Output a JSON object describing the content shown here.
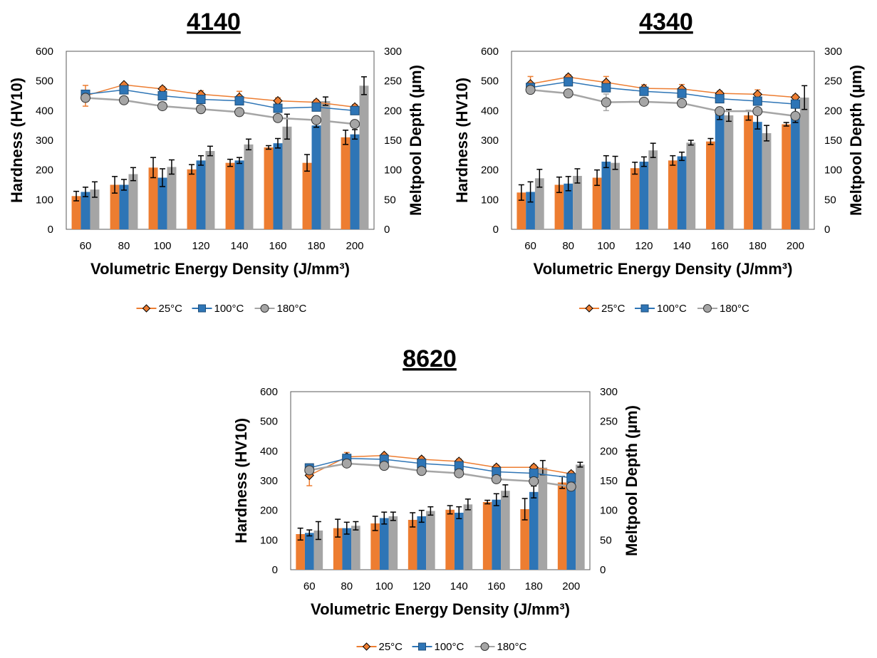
{
  "chart_data": [
    {
      "type": "bar",
      "title": "4140",
      "xlabel": "Volumetric Energy Density (J/mm³)",
      "ylabel": "Hardness (HV10)",
      "y2label": "Meltpool Depth (µm)",
      "categories": [
        "60",
        "80",
        "100",
        "120",
        "140",
        "160",
        "180",
        "200"
      ],
      "ylim": [
        0,
        600
      ],
      "y2lim": [
        0,
        300
      ],
      "yticks": [
        "0",
        "100",
        "200",
        "300",
        "400",
        "500",
        "600"
      ],
      "y2ticks": [
        "0",
        "50",
        "100",
        "150",
        "200",
        "250",
        "300"
      ],
      "legend_position": "bottom",
      "grid": false,
      "series": [
        {
          "name": "25°C",
          "color": "#ED7D31",
          "marker": "diamond",
          "hardness": [
            450,
            487,
            473,
            455,
            445,
            433,
            428,
            412
          ],
          "hardness_err": [
            35,
            6,
            8,
            12,
            20,
            10,
            8,
            8
          ],
          "meltpool": [
            56,
            75,
            104,
            101,
            112,
            138,
            112,
            155
          ],
          "meltpool_err": [
            8,
            14,
            17,
            8,
            6,
            3,
            14,
            12
          ]
        },
        {
          "name": "100°C",
          "color": "#2E75B6",
          "marker": "square",
          "hardness": [
            455,
            470,
            450,
            438,
            433,
            408,
            412,
            400
          ],
          "hardness_err": [
            8,
            6,
            6,
            8,
            8,
            6,
            5,
            5
          ],
          "meltpool": [
            63,
            75,
            87,
            116,
            116,
            145,
            175,
            160
          ],
          "meltpool_err": [
            8,
            9,
            15,
            8,
            5,
            8,
            3,
            8
          ]
        },
        {
          "name": "180°C",
          "color": "#A5A5A5",
          "marker": "circle",
          "hardness": [
            443,
            435,
            415,
            405,
            395,
            375,
            368,
            355
          ],
          "hardness_err": [
            5,
            5,
            5,
            5,
            5,
            5,
            5,
            5
          ],
          "meltpool": [
            67,
            93,
            105,
            132,
            143,
            173,
            216,
            242
          ],
          "meltpool_err": [
            13,
            11,
            12,
            8,
            9,
            21,
            7,
            15
          ]
        }
      ]
    },
    {
      "type": "bar",
      "title": "4340",
      "xlabel": "Volumetric Energy Density (J/mm³)",
      "ylabel": "Hardness (HV10)",
      "y2label": "Meltpool Depth (µm)",
      "categories": [
        "60",
        "80",
        "100",
        "120",
        "140",
        "160",
        "180",
        "200"
      ],
      "ylim": [
        0,
        600
      ],
      "y2lim": [
        0,
        300
      ],
      "yticks": [
        "0",
        "100",
        "200",
        "300",
        "400",
        "500",
        "600"
      ],
      "y2ticks": [
        "0",
        "50",
        "100",
        "150",
        "200",
        "250",
        "300"
      ],
      "legend_position": "bottom",
      "grid": false,
      "series": [
        {
          "name": "25°C",
          "color": "#ED7D31",
          "marker": "diamond",
          "hardness": [
            490,
            513,
            495,
            475,
            473,
            458,
            455,
            445
          ],
          "hardness_err": [
            25,
            8,
            20,
            12,
            15,
            8,
            15,
            8
          ],
          "meltpool": [
            62,
            75,
            87,
            103,
            116,
            148,
            192,
            177
          ],
          "meltpool_err": [
            13,
            13,
            13,
            10,
            8,
            5,
            8,
            3
          ]
        },
        {
          "name": "100°C",
          "color": "#2E75B6",
          "marker": "square",
          "hardness": [
            478,
            497,
            477,
            465,
            458,
            440,
            432,
            422
          ],
          "hardness_err": [
            8,
            6,
            8,
            6,
            6,
            6,
            6,
            6
          ],
          "meltpool": [
            63,
            77,
            114,
            114,
            123,
            195,
            181,
            195
          ],
          "meltpool_err": [
            17,
            12,
            10,
            8,
            7,
            10,
            12,
            15
          ]
        },
        {
          "name": "180°C",
          "color": "#A5A5A5",
          "marker": "circle",
          "hardness": [
            470,
            458,
            428,
            430,
            425,
            398,
            398,
            382
          ],
          "hardness_err": [
            10,
            5,
            28,
            5,
            5,
            5,
            5,
            5
          ],
          "meltpool": [
            86,
            90,
            112,
            133,
            146,
            192,
            162,
            222
          ],
          "meltpool_err": [
            15,
            12,
            11,
            12,
            4,
            10,
            13,
            20
          ]
        }
      ]
    },
    {
      "type": "bar",
      "title": "8620",
      "xlabel": "Volumetric Energy Density (J/mm³)",
      "ylabel": "Hardness (HV10)",
      "y2label": "Meltpool Depth (µm)",
      "categories": [
        "60",
        "80",
        "100",
        "120",
        "140",
        "160",
        "180",
        "200"
      ],
      "ylim": [
        0,
        600
      ],
      "y2lim": [
        0,
        300
      ],
      "yticks": [
        "0",
        "100",
        "200",
        "300",
        "400",
        "500",
        "600"
      ],
      "y2ticks": [
        "0",
        "50",
        "100",
        "150",
        "200",
        "250",
        "300"
      ],
      "legend_position": "bottom",
      "grid": false,
      "series": [
        {
          "name": "25°C",
          "color": "#ED7D31",
          "marker": "diamond",
          "hardness": [
            318,
            380,
            385,
            372,
            365,
            345,
            345,
            323
          ],
          "hardness_err": [
            35,
            15,
            6,
            8,
            8,
            8,
            8,
            8
          ],
          "meltpool": [
            60,
            70,
            78,
            84,
            101,
            114,
            102,
            147
          ],
          "meltpool_err": [
            10,
            15,
            12,
            12,
            7,
            3,
            18,
            10
          ]
        },
        {
          "name": "100°C",
          "color": "#2E75B6",
          "marker": "square",
          "hardness": [
            343,
            375,
            372,
            358,
            350,
            330,
            325,
            310
          ],
          "hardness_err": [
            10,
            8,
            6,
            6,
            6,
            6,
            6,
            6
          ],
          "meltpool": [
            62,
            70,
            87,
            90,
            96,
            118,
            131,
            150
          ],
          "meltpool_err": [
            5,
            10,
            10,
            10,
            10,
            10,
            10,
            10
          ]
        },
        {
          "name": "180°C",
          "color": "#A5A5A5",
          "marker": "circle",
          "hardness": [
            335,
            358,
            350,
            333,
            325,
            305,
            298,
            280
          ],
          "hardness_err": [
            5,
            5,
            5,
            5,
            5,
            5,
            5,
            5
          ],
          "meltpool": [
            66,
            74,
            90,
            99,
            110,
            133,
            172,
            177
          ],
          "meltpool_err": [
            15,
            7,
            7,
            7,
            9,
            10,
            12,
            4
          ]
        }
      ]
    }
  ]
}
